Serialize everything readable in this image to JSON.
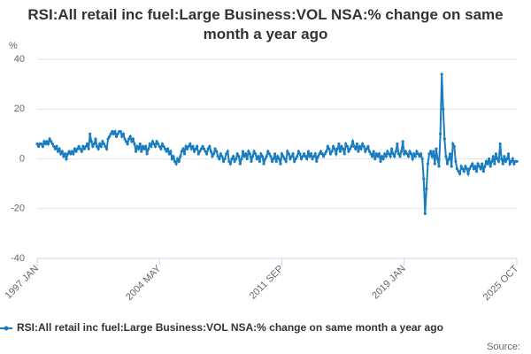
{
  "chart_data": {
    "type": "line",
    "title": "RSI:All retail inc fuel:Large Business:VOL NSA:% change on same month a year ago",
    "y_label": "%",
    "source_label": "Source:",
    "categories": [
      "1997 JAN",
      null,
      null,
      null,
      null,
      null,
      null,
      null,
      null,
      null,
      null,
      null,
      null,
      null,
      null,
      null,
      null,
      null,
      null,
      null,
      null,
      null,
      null,
      null,
      null,
      null,
      null,
      null,
      null,
      null,
      null,
      null,
      null,
      null,
      null,
      null,
      null,
      null,
      null,
      null,
      null,
      null,
      null,
      null,
      null,
      null,
      null,
      null,
      null,
      null,
      null,
      null,
      null,
      null,
      null,
      null,
      null,
      null,
      null,
      null,
      null,
      null,
      null,
      null,
      null,
      null,
      null,
      null,
      null,
      null,
      null,
      null,
      null,
      null,
      null,
      null,
      null,
      null,
      null,
      null,
      null,
      null,
      null,
      null,
      null,
      null,
      null,
      null,
      "2004 MAY",
      null,
      null,
      null,
      null,
      null,
      null,
      null,
      null,
      null,
      null,
      null,
      null,
      null,
      null,
      null,
      null,
      null,
      null,
      null,
      null,
      null,
      null,
      null,
      null,
      null,
      null,
      null,
      null,
      null,
      null,
      null,
      null,
      null,
      null,
      null,
      null,
      null,
      null,
      null,
      null,
      null,
      null,
      null,
      null,
      null,
      null,
      null,
      null,
      null,
      null,
      null,
      null,
      null,
      null,
      null,
      null,
      null,
      null,
      null,
      null,
      null,
      null,
      null,
      null,
      null,
      null,
      null,
      null,
      null,
      null,
      null,
      null,
      null,
      null,
      null,
      null,
      null,
      null,
      null,
      null,
      null,
      null,
      null,
      null,
      null,
      null,
      null,
      "2011 SEP",
      null,
      null,
      null,
      null,
      null,
      null,
      null,
      null,
      null,
      null,
      null,
      null,
      null,
      null,
      null,
      null,
      null,
      null,
      null,
      null,
      null,
      null,
      null,
      null,
      null,
      null,
      null,
      null,
      null,
      null,
      null,
      null,
      null,
      null,
      null,
      null,
      null,
      null,
      null,
      null,
      null,
      null,
      null,
      null,
      null,
      null,
      null,
      null,
      null,
      null,
      null,
      null,
      null,
      null,
      null,
      null,
      null,
      null,
      null,
      null,
      null,
      null,
      null,
      null,
      null,
      null,
      null,
      null,
      null,
      null,
      null,
      null,
      null,
      null,
      null,
      null,
      null,
      null,
      null,
      null,
      null,
      null,
      null,
      null,
      null,
      null,
      null,
      "2019 JAN",
      null,
      null,
      null,
      null,
      null,
      null,
      null,
      null,
      null,
      null,
      null,
      null,
      null,
      null,
      null,
      null,
      null,
      null,
      null,
      null,
      null,
      null,
      null,
      null,
      null,
      null,
      null,
      null,
      null,
      null,
      null,
      null,
      null,
      null,
      null,
      null,
      null,
      null,
      null,
      null,
      null,
      null,
      null,
      null,
      null,
      null,
      null,
      null,
      null,
      null,
      null,
      null,
      null,
      null,
      null,
      null,
      null,
      null,
      null,
      null,
      null,
      null,
      null,
      null,
      null,
      null,
      null,
      null,
      null,
      null,
      null,
      null,
      null,
      null,
      null,
      null,
      null,
      null,
      null,
      null,
      "2025 OCT"
    ],
    "series": [
      {
        "name": "RSI:All retail inc fuel:Large Business:VOL NSA:% change on same month a year ago",
        "color": "#1a7dc0",
        "values": [
          6,
          5,
          6,
          6,
          5,
          7,
          6,
          7,
          6,
          8,
          7,
          6,
          5,
          4,
          5,
          3,
          4,
          2,
          3,
          1,
          2,
          0,
          2,
          3,
          2,
          3,
          2,
          4,
          3,
          4,
          5,
          4,
          3,
          5,
          4,
          5,
          6,
          4,
          10,
          7,
          5,
          6,
          8,
          5,
          4,
          6,
          5,
          7,
          6,
          5,
          4,
          8,
          9,
          10,
          11,
          10,
          11,
          9,
          10,
          11,
          11,
          9,
          10,
          8,
          7,
          6,
          8,
          9,
          7,
          8,
          6,
          3,
          5,
          4,
          6,
          3,
          5,
          4,
          5,
          2,
          4,
          6,
          5,
          7,
          6,
          5,
          7,
          6,
          5,
          4,
          6,
          5,
          4,
          3,
          4,
          2,
          3,
          0,
          1,
          -1,
          -2,
          0,
          -1,
          1,
          3,
          4,
          2,
          5,
          4,
          5,
          6,
          4,
          5,
          3,
          4,
          5,
          2,
          3,
          4,
          5,
          4,
          3,
          2,
          4,
          5,
          3,
          1,
          2,
          4,
          3,
          1,
          0,
          2,
          1,
          -1,
          0,
          2,
          3,
          -1,
          -2,
          0,
          1,
          -1,
          0,
          2,
          1,
          -2,
          0,
          3,
          1,
          2,
          0,
          3,
          2,
          -1,
          1,
          3,
          2,
          0,
          1,
          -1,
          2,
          1,
          -2,
          0,
          1,
          3,
          2,
          1,
          -1,
          0,
          2,
          -1,
          1,
          0,
          -2,
          2,
          1,
          0,
          -1,
          3,
          2,
          0,
          1,
          2,
          -1,
          0,
          1,
          3,
          2,
          0,
          1,
          2,
          1,
          0,
          3,
          1,
          2,
          0,
          1,
          2,
          -1,
          1,
          2,
          3,
          2,
          1,
          2,
          3,
          5,
          4,
          2,
          3,
          5,
          4,
          2,
          4,
          6,
          3,
          5,
          4,
          2,
          6,
          5,
          3,
          4,
          5,
          7,
          5,
          4,
          6,
          3,
          5,
          4,
          6,
          5,
          3,
          4,
          5,
          3,
          2,
          1,
          3,
          0,
          2,
          1,
          2,
          -1,
          1,
          0,
          2,
          1,
          3,
          2,
          1,
          4,
          2,
          1,
          3,
          6,
          2,
          1,
          3,
          7,
          2,
          3,
          2,
          1,
          3,
          2,
          0,
          2,
          1,
          3,
          2,
          1,
          2,
          0,
          -8,
          -22,
          -12,
          -2,
          2,
          3,
          1,
          3,
          -2,
          4,
          0,
          -3,
          10,
          34,
          20,
          8,
          1,
          -2,
          0,
          2,
          -3,
          6,
          5,
          -1,
          -4,
          -5,
          -6,
          -3,
          -4,
          -5,
          -3,
          -4,
          -6,
          -4,
          -3,
          -2,
          -4,
          -3,
          -5,
          -2,
          -3,
          -4,
          -2,
          -5,
          -3,
          -1,
          -2,
          0,
          -3,
          -1,
          1,
          -2,
          2,
          0,
          -1,
          6,
          0,
          -2,
          1,
          -1,
          0,
          2,
          -2,
          -1,
          0,
          -2,
          -1,
          -1
        ]
      }
    ],
    "ylim": [
      -40,
      40
    ],
    "yticks": [
      -40,
      -20,
      0,
      20,
      40
    ],
    "grid": true
  }
}
